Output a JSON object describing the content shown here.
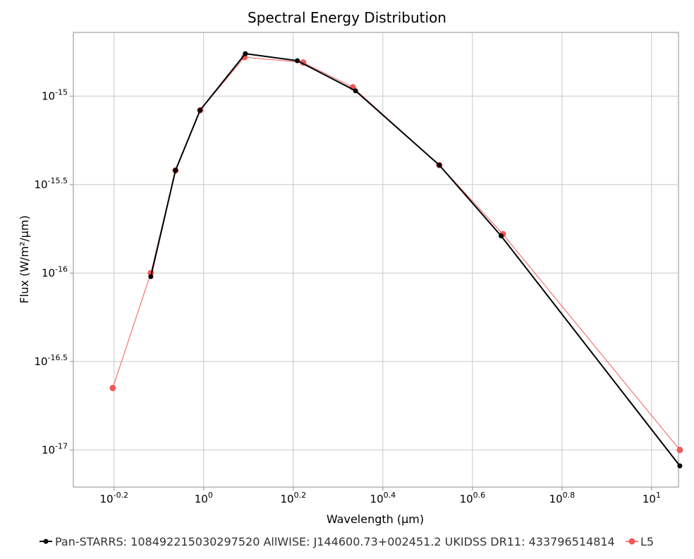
{
  "chart_data": {
    "type": "line",
    "title": "Spectral Energy Distribution",
    "xlabel": "Wavelength (µm)",
    "ylabel": "Flux (W/m²/µm)",
    "x_scale": "log",
    "y_scale": "log",
    "xlim_log10": [
      -0.291,
      1.06
    ],
    "ylim_log10": [
      -17.21,
      -14.64
    ],
    "grid": true,
    "legend_position": "bottom",
    "x_ticks": [
      {
        "exp": "-0.2",
        "value": -0.2
      },
      {
        "exp": "0",
        "value": 0
      },
      {
        "exp": "0.2",
        "value": 0.2
      },
      {
        "exp": "0.4",
        "value": 0.4
      },
      {
        "exp": "0.6",
        "value": 0.6
      },
      {
        "exp": "0.8",
        "value": 0.8
      },
      {
        "exp": "1",
        "value": 1
      }
    ],
    "y_ticks": [
      {
        "exp": "-15",
        "value": -15
      },
      {
        "exp": "-15.5",
        "value": -15.5
      },
      {
        "exp": "-16",
        "value": -16
      },
      {
        "exp": "-16.5",
        "value": -16.5
      },
      {
        "exp": "-17",
        "value": -17
      }
    ],
    "series": [
      {
        "name": "Pan-STARRS: 108492215030297520 AllWISE: J144600.73+002451.2 UKIDSS DR11: 433796514814",
        "color": "#000000",
        "x_log10": [
          -0.118,
          -0.063,
          -0.008,
          0.093,
          0.209,
          0.339,
          0.526,
          0.664,
          1.063
        ],
        "y_log10": [
          -16.02,
          -15.42,
          -15.08,
          -14.76,
          -14.8,
          -14.97,
          -15.39,
          -15.79,
          -17.09
        ]
      },
      {
        "name": "L5",
        "color": "#f35858",
        "x_log10": [
          -0.203,
          -0.118,
          -0.063,
          -0.008,
          0.091,
          0.222,
          0.333,
          0.526,
          0.668,
          1.063
        ],
        "y_log10": [
          -16.65,
          -16.0,
          -15.42,
          -15.08,
          -14.78,
          -14.81,
          -14.95,
          -15.39,
          -15.78,
          -17.0
        ]
      }
    ]
  }
}
